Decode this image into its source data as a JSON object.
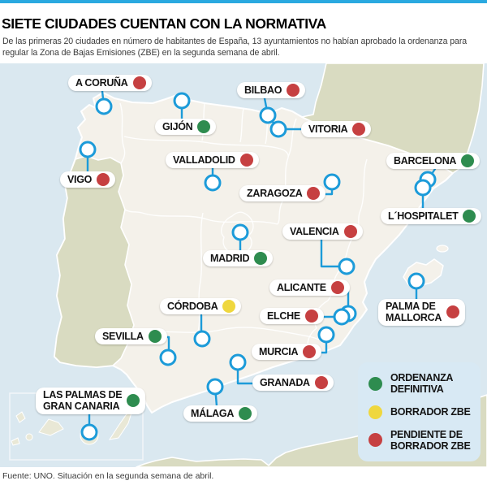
{
  "header": {
    "title": "SIETE CIUDADES CUENTAN CON LA NORMATIVA",
    "subtitle": "De las primeras 20 ciudades en número de habitantes de España, 13 ayuntamientos no habían aprobado la ordenanza para regular la Zona de Bajas Emisiones (ZBE) en la segunda semana de abril.",
    "accent_color": "#2aa9e0"
  },
  "map": {
    "colors": {
      "sea": "#dae8f0",
      "spain_land": "#f4f1ea",
      "other_land": "#d9dbc1",
      "island_land": "#e9e8d6",
      "coast_border": "#ffffff",
      "connector_blue": "#1c9bd9",
      "marker_fill": "#ffffff",
      "legend_bg": "#d8e9f4"
    },
    "status_colors": {
      "definitiva": "#2e8c4f",
      "borrador": "#efd73e",
      "pendiente": "#c64041"
    },
    "cities": [
      {
        "id": "a-coruna",
        "lines": [
          "A CORUÑA"
        ],
        "status": "pendiente",
        "label": [
          84,
          92
        ],
        "marker": [
          128,
          131
        ],
        "line": [
          [
            126,
            112
          ],
          [
            128,
            131
          ]
        ]
      },
      {
        "id": "bilbao",
        "lines": [
          "BILBAO"
        ],
        "status": "pendiente",
        "label": [
          292,
          101
        ],
        "marker": [
          330,
          142
        ],
        "line": [
          [
            326,
            121
          ],
          [
            330,
            142
          ]
        ]
      },
      {
        "id": "gijon",
        "lines": [
          "GIJÓN"
        ],
        "status": "definitiva",
        "label": [
          191,
          146
        ],
        "marker": [
          224,
          124
        ],
        "line": [
          [
            224,
            124
          ],
          [
            224,
            148
          ]
        ]
      },
      {
        "id": "vitoria",
        "lines": [
          "VITORIA"
        ],
        "status": "pendiente",
        "label": [
          371,
          149
        ],
        "marker": [
          343,
          159
        ],
        "line": [
          [
            332,
            145
          ],
          [
            343,
            159
          ],
          [
            371,
            159
          ]
        ]
      },
      {
        "id": "valladolid",
        "lines": [
          "VALLADOLID"
        ],
        "status": "pendiente",
        "label": [
          204,
          187
        ],
        "marker": [
          262,
          225
        ],
        "line": [
          [
            262,
            207
          ],
          [
            262,
            225
          ]
        ]
      },
      {
        "id": "barcelona",
        "lines": [
          "BARCELONA"
        ],
        "status": "definitiva",
        "label": [
          476,
          188
        ],
        "marker": [
          527,
          221
        ],
        "line": [
          [
            536,
            208
          ],
          [
            528,
            220
          ]
        ]
      },
      {
        "id": "vigo",
        "lines": [
          "VIGO"
        ],
        "status": "pendiente",
        "label": [
          74,
          211
        ],
        "marker": [
          108,
          184
        ],
        "line": [
          [
            108,
            184
          ],
          [
            108,
            212
          ]
        ]
      },
      {
        "id": "zaragoza",
        "lines": [
          "ZARAGOZA"
        ],
        "status": "pendiente",
        "label": [
          295,
          228
        ],
        "marker": [
          409,
          224
        ],
        "line": [
          [
            390,
            239
          ],
          [
            409,
            239
          ],
          [
            409,
            224
          ]
        ]
      },
      {
        "id": "l-hospitalet",
        "lines": [
          "L´HOSPITALET"
        ],
        "status": "definitiva",
        "label": [
          469,
          256
        ],
        "marker": [
          521,
          231
        ],
        "line": [
          [
            521,
            233
          ],
          [
            521,
            257
          ]
        ]
      },
      {
        "id": "valencia",
        "lines": [
          "VALENCIA"
        ],
        "status": "pendiente",
        "label": [
          348,
          275
        ],
        "marker": [
          427,
          328
        ],
        "line": [
          [
            396,
            295
          ],
          [
            396,
            328
          ],
          [
            427,
            328
          ]
        ]
      },
      {
        "id": "madrid",
        "lines": [
          "MADRID"
        ],
        "status": "definitiva",
        "label": [
          250,
          308
        ],
        "marker": [
          296,
          286
        ],
        "line": [
          [
            296,
            286
          ],
          [
            296,
            309
          ]
        ]
      },
      {
        "id": "alicante",
        "lines": [
          "ALICANTE"
        ],
        "status": "pendiente",
        "label": [
          332,
          344
        ],
        "marker": [
          429,
          386
        ],
        "line": [
          [
            416,
            357
          ],
          [
            429,
            357
          ],
          [
            429,
            386
          ]
        ]
      },
      {
        "id": "elche",
        "lines": [
          "ELCHE"
        ],
        "status": "pendiente",
        "label": [
          320,
          379
        ],
        "marker": [
          421,
          390
        ],
        "line": [
          [
            393,
            390
          ],
          [
            421,
            390
          ]
        ]
      },
      {
        "id": "palma-de-mallorca",
        "lines": [
          "PALMA DE",
          "MALLORCA"
        ],
        "status": "pendiente",
        "label": [
          466,
          368
        ],
        "marker": [
          513,
          346
        ],
        "line": [
          [
            513,
            346
          ],
          [
            513,
            369
          ]
        ]
      },
      {
        "id": "cordoba",
        "lines": [
          "CÓRDOBA"
        ],
        "status": "borrador",
        "label": [
          197,
          367
        ],
        "marker": [
          249,
          417
        ],
        "line": [
          [
            248,
            388
          ],
          [
            248,
            417
          ]
        ]
      },
      {
        "id": "sevilla",
        "lines": [
          "SEVILLA"
        ],
        "status": "definitiva",
        "label": [
          117,
          404
        ],
        "marker": [
          207,
          440
        ],
        "line": [
          [
            194,
            415
          ],
          [
            208,
            415
          ],
          [
            208,
            440
          ]
        ]
      },
      {
        "id": "murcia",
        "lines": [
          "MURCIA"
        ],
        "status": "pendiente",
        "label": [
          310,
          423
        ],
        "marker": [
          402,
          412
        ],
        "line": [
          [
            389,
            434
          ],
          [
            402,
            434
          ],
          [
            402,
            412
          ]
        ]
      },
      {
        "id": "granada",
        "lines": [
          "GRANADA"
        ],
        "status": "pendiente",
        "label": [
          311,
          461
        ],
        "marker": [
          293,
          446
        ],
        "line": [
          [
            293,
            446
          ],
          [
            293,
            472
          ],
          [
            311,
            472
          ]
        ]
      },
      {
        "id": "malaga",
        "lines": [
          "MÁLAGA"
        ],
        "status": "definitiva",
        "label": [
          226,
          499
        ],
        "marker": [
          265,
          476
        ],
        "line": [
          [
            265,
            476
          ],
          [
            267,
            500
          ]
        ]
      },
      {
        "id": "las-palmas",
        "lines": [
          "LAS PALMAS DE",
          "GRAN CANARIA"
        ],
        "status": "definitiva",
        "label": [
          44,
          477
        ],
        "marker": [
          110,
          532
        ],
        "line": [
          [
            110,
            508
          ],
          [
            110,
            532
          ]
        ]
      }
    ]
  },
  "legend": {
    "items": [
      {
        "id": "ordenanza-definitiva",
        "line1": "ORDENANZA",
        "line2": "DEFINITIVA",
        "status": "definitiva"
      },
      {
        "id": "borrador-zbe",
        "line1": "BORRADOR ZBE",
        "line2": "",
        "status": "borrador"
      },
      {
        "id": "pendiente-borrador-zbe",
        "line1": "PENDIENTE DE",
        "line2": "BORRADOR ZBE",
        "status": "pendiente"
      }
    ]
  },
  "footer": {
    "source": "Fuente: UNO. Situación en la segunda semana de abril."
  }
}
